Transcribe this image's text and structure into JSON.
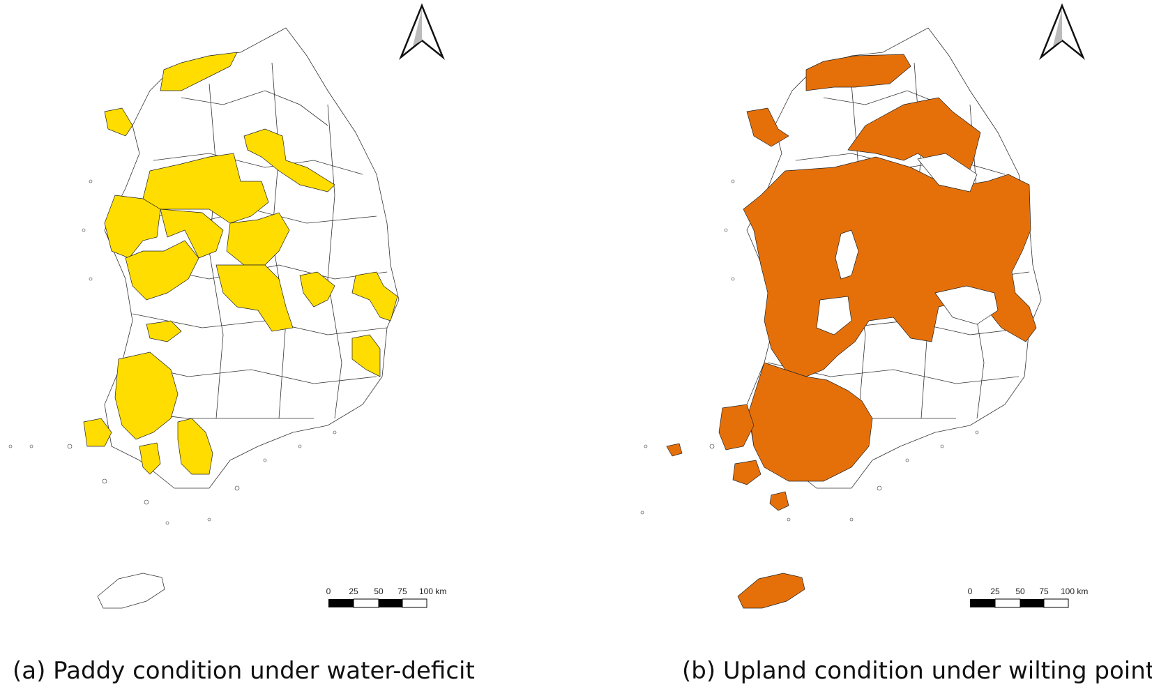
{
  "panels": [
    {
      "id": "a",
      "caption": "(a) Paddy condition under water-deficit",
      "fill_color": "#FFDD00",
      "scale_ticks": [
        "0",
        "25",
        "50",
        "75",
        "100 km"
      ]
    },
    {
      "id": "b",
      "caption": "(b) Upland condition under wilting point",
      "fill_color": "#E5700A",
      "scale_ticks": [
        "0",
        "25",
        "50",
        "75",
        "100 km"
      ]
    }
  ],
  "icons": {
    "north_arrow": "north-arrow-icon"
  },
  "colors": {
    "boundary": "#333333",
    "background": "#ffffff"
  }
}
